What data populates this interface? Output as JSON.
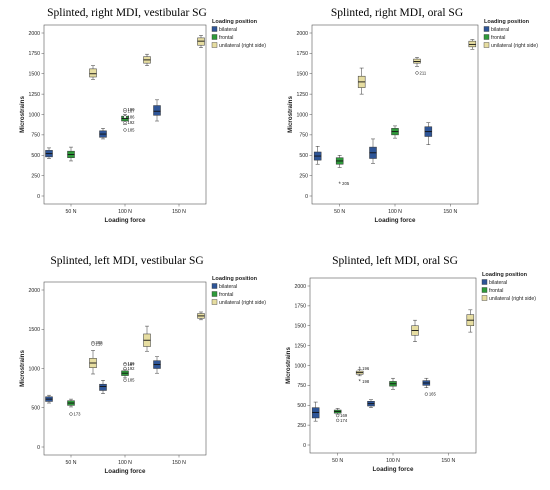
{
  "colors": {
    "bilateral": "#2e5597",
    "frontal": "#2e9a3a",
    "unilateral": "#e6dda1",
    "axis": "#555555",
    "box_edge": "#333333",
    "outlier": "#333333"
  },
  "chart_data": [
    {
      "type": "box",
      "title": "Splinted, right MDI, vestibular SG",
      "xlabel": "Loading force",
      "ylabel": "Microstrains",
      "categories": [
        "50 N",
        "100 N",
        "150 N"
      ],
      "ylim": [
        0,
        2000
      ],
      "yticks": [
        0,
        250,
        500,
        750,
        1000,
        1250,
        1500,
        1750,
        2000
      ],
      "legend": {
        "title": "Loading position",
        "placement": "right",
        "entries": [
          "bilateral",
          "frontal",
          "unilateral  (right side)"
        ]
      },
      "series": [
        {
          "name": "bilateral",
          "boxes": [
            {
              "category": "50 N",
              "min": 460,
              "q1": 480,
              "median": 520,
              "q3": 560,
              "max": 590
            },
            {
              "category": "100 N",
              "min": 700,
              "q1": 720,
              "median": 760,
              "q3": 800,
              "max": 830
            },
            {
              "category": "150 N",
              "min": 920,
              "q1": 990,
              "median": 1040,
              "q3": 1110,
              "max": 1180
            }
          ]
        },
        {
          "name": "frontal",
          "boxes": [
            {
              "category": "50 N",
              "min": 430,
              "q1": 470,
              "median": 510,
              "q3": 550,
              "max": 600
            },
            {
              "category": "100 N",
              "min": 880,
              "q1": 920,
              "median": 950,
              "q3": 980,
              "max": 1000
            }
          ]
        },
        {
          "name": "unilateral  (right side)",
          "boxes": [
            {
              "category": "50 N",
              "min": 1430,
              "q1": 1460,
              "median": 1500,
              "q3": 1560,
              "max": 1600
            },
            {
              "category": "100 N",
              "min": 1600,
              "q1": 1630,
              "median": 1670,
              "q3": 1710,
              "max": 1740
            },
            {
              "category": "150 N",
              "min": 1820,
              "q1": 1850,
              "median": 1900,
              "q3": 1940,
              "max": 1970
            }
          ]
        }
      ],
      "outliers": [
        {
          "category": "100 N",
          "series": "frontal",
          "value": 1040,
          "label": "187"
        },
        {
          "category": "100 N",
          "series": "frontal",
          "value": 1060,
          "label": "190"
        },
        {
          "category": "100 N",
          "series": "frontal",
          "value": 970,
          "label": "186"
        },
        {
          "category": "100 N",
          "series": "frontal",
          "value": 900,
          "label": "192"
        },
        {
          "category": "100 N",
          "series": "frontal",
          "value": 810,
          "label": "185"
        }
      ]
    },
    {
      "type": "box",
      "title": "Splinted, right MDI, oral SG",
      "xlabel": "Loading force",
      "ylabel": "Microstrains",
      "categories": [
        "50 N",
        "100 N",
        "150 N"
      ],
      "ylim": [
        0,
        2000
      ],
      "yticks": [
        0,
        250,
        500,
        750,
        1000,
        1250,
        1500,
        1750,
        2000
      ],
      "legend": {
        "title": "Loading position",
        "placement": "right",
        "entries": [
          "bilateral",
          "frontal",
          "unilateral  (right side)"
        ]
      },
      "series": [
        {
          "name": "bilateral",
          "boxes": [
            {
              "category": "50 N",
              "min": 390,
              "q1": 440,
              "median": 490,
              "q3": 540,
              "max": 610
            },
            {
              "category": "100 N",
              "min": 400,
              "q1": 460,
              "median": 530,
              "q3": 600,
              "max": 700
            },
            {
              "category": "150 N",
              "min": 630,
              "q1": 730,
              "median": 790,
              "q3": 850,
              "max": 900
            }
          ]
        },
        {
          "name": "frontal",
          "boxes": [
            {
              "category": "50 N",
              "min": 350,
              "q1": 390,
              "median": 430,
              "q3": 470,
              "max": 500
            },
            {
              "category": "100 N",
              "min": 710,
              "q1": 750,
              "median": 790,
              "q3": 830,
              "max": 860
            }
          ]
        },
        {
          "name": "unilateral  (right side)",
          "boxes": [
            {
              "category": "50 N",
              "min": 1250,
              "q1": 1330,
              "median": 1400,
              "q3": 1470,
              "max": 1570
            },
            {
              "category": "100 N",
              "min": 1590,
              "q1": 1630,
              "median": 1650,
              "q3": 1680,
              "max": 1700
            },
            {
              "category": "150 N",
              "min": 1800,
              "q1": 1830,
              "median": 1860,
              "q3": 1900,
              "max": 1920
            }
          ]
        }
      ],
      "outliers": [
        {
          "category": "50 N",
          "series": "frontal",
          "value": 150,
          "label": "205",
          "marker": "star"
        },
        {
          "category": "100 N",
          "series": "unilateral  (right side)",
          "value": 1510,
          "label": "211"
        }
      ]
    },
    {
      "type": "box",
      "title": "Splinted, left MDI, vestibular SG",
      "xlabel": "Loading force",
      "ylabel": "Microstrains",
      "categories": [
        "50 N",
        "100 N",
        "150 N"
      ],
      "ylim": [
        0,
        2000
      ],
      "yticks": [
        0,
        500,
        1000,
        1500,
        2000
      ],
      "legend": {
        "title": "Loading position",
        "placement": "right",
        "entries": [
          "bilateral",
          "frontal",
          "unilateral  (right side)"
        ]
      },
      "series": [
        {
          "name": "bilateral",
          "boxes": [
            {
              "category": "50 N",
              "min": 560,
              "q1": 580,
              "median": 610,
              "q3": 640,
              "max": 660
            },
            {
              "category": "100 N",
              "min": 680,
              "q1": 720,
              "median": 770,
              "q3": 800,
              "max": 850
            },
            {
              "category": "150 N",
              "min": 940,
              "q1": 1000,
              "median": 1050,
              "q3": 1100,
              "max": 1150
            }
          ]
        },
        {
          "name": "frontal",
          "boxes": [
            {
              "category": "50 N",
              "min": 510,
              "q1": 530,
              "median": 560,
              "q3": 590,
              "max": 610
            },
            {
              "category": "100 N",
              "min": 880,
              "q1": 910,
              "median": 940,
              "q3": 970,
              "max": 990
            }
          ]
        },
        {
          "name": "unilateral  (right side)",
          "boxes": [
            {
              "category": "50 N",
              "min": 930,
              "q1": 1010,
              "median": 1070,
              "q3": 1130,
              "max": 1230
            },
            {
              "category": "100 N",
              "min": 1220,
              "q1": 1280,
              "median": 1360,
              "q3": 1440,
              "max": 1540
            },
            {
              "category": "150 N",
              "min": 1620,
              "q1": 1640,
              "median": 1670,
              "q3": 1700,
              "max": 1720
            }
          ]
        }
      ],
      "outliers": [
        {
          "category": "50 N",
          "series": "frontal",
          "value": 420,
          "label": "173"
        },
        {
          "category": "50 N",
          "series": "unilateral  (right side)",
          "value": 1330,
          "label": "209"
        },
        {
          "category": "50 N",
          "series": "unilateral  (right side)",
          "value": 1310,
          "label": "210"
        },
        {
          "category": "100 N",
          "series": "frontal",
          "value": 1060,
          "label": "186"
        },
        {
          "category": "100 N",
          "series": "frontal",
          "value": 1050,
          "label": "187"
        },
        {
          "category": "100 N",
          "series": "frontal",
          "value": 1000,
          "label": "192"
        },
        {
          "category": "100 N",
          "series": "frontal",
          "value": 850,
          "label": "185"
        }
      ]
    },
    {
      "type": "box",
      "title": "Splinted, left MDI, oral SG",
      "xlabel": "Loading force",
      "ylabel": "Microstrains",
      "categories": [
        "50 N",
        "100 N",
        "150 N"
      ],
      "ylim": [
        0,
        2000
      ],
      "yticks": [
        0,
        250,
        500,
        750,
        1000,
        1250,
        1500,
        1750,
        2000
      ],
      "legend": {
        "title": "Loading position",
        "placement": "right",
        "entries": [
          "bilateral",
          "frontal",
          "unilateral  (right side)"
        ]
      },
      "series": [
        {
          "name": "bilateral",
          "boxes": [
            {
              "category": "50 N",
              "min": 300,
              "q1": 340,
              "median": 410,
              "q3": 470,
              "max": 540
            },
            {
              "category": "100 N",
              "min": 470,
              "q1": 490,
              "median": 520,
              "q3": 550,
              "max": 570
            },
            {
              "category": "150 N",
              "min": 720,
              "q1": 750,
              "median": 780,
              "q3": 810,
              "max": 840
            }
          ]
        },
        {
          "name": "frontal",
          "boxes": [
            {
              "category": "50 N",
              "min": 380,
              "q1": 400,
              "median": 420,
              "q3": 440,
              "max": 460
            },
            {
              "category": "100 N",
              "min": 700,
              "q1": 740,
              "median": 770,
              "q3": 800,
              "max": 840
            }
          ]
        },
        {
          "name": "unilateral  (right side)",
          "boxes": [
            {
              "category": "50 N",
              "min": 870,
              "q1": 890,
              "median": 910,
              "q3": 930,
              "max": 950
            },
            {
              "category": "100 N",
              "min": 1300,
              "q1": 1380,
              "median": 1440,
              "q3": 1500,
              "max": 1570
            },
            {
              "category": "150 N",
              "min": 1420,
              "q1": 1500,
              "median": 1570,
              "q3": 1640,
              "max": 1700
            }
          ]
        }
      ],
      "outliers": [
        {
          "category": "50 N",
          "series": "unilateral  (right side)",
          "value": 960,
          "label": "196",
          "marker": "star"
        },
        {
          "category": "50 N",
          "series": "unilateral  (right side)",
          "value": 800,
          "label": "198",
          "marker": "star"
        },
        {
          "category": "50 N",
          "series": "frontal",
          "value": 370,
          "label": "169"
        },
        {
          "category": "50 N",
          "series": "frontal",
          "value": 310,
          "label": "174"
        },
        {
          "category": "150 N",
          "series": "bilateral",
          "value": 640,
          "label": "165"
        }
      ]
    }
  ]
}
